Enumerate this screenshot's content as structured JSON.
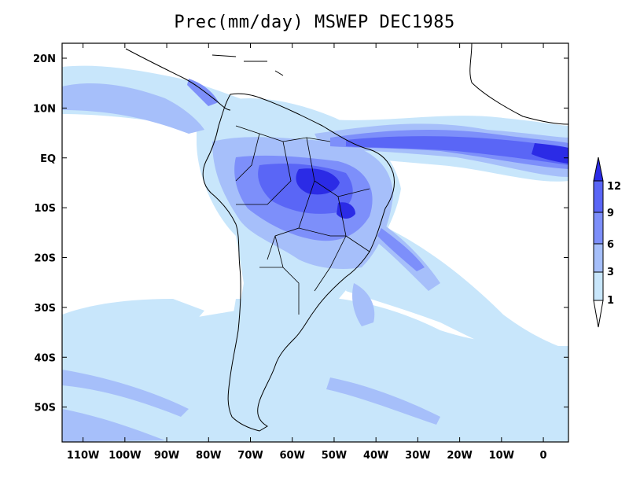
{
  "title": "Prec(mm/day) MSWEP DEC1985",
  "lon_labels": [
    "110W",
    "100W",
    "90W",
    "80W",
    "70W",
    "60W",
    "50W",
    "40W",
    "30W",
    "20W",
    "10W",
    "0"
  ],
  "lat_labels": [
    "20N",
    "10N",
    "EQ",
    "10S",
    "20S",
    "30S",
    "40S",
    "50S"
  ],
  "colorbar": {
    "levels": [
      "1",
      "3",
      "6",
      "9",
      "12"
    ],
    "colors": {
      "c1": "#c8e6fb",
      "c3": "#a6bffa",
      "c6": "#7d8ffa",
      "c9": "#5a66f6",
      "c12": "#2b2be6"
    }
  },
  "map_extent": {
    "lon_min": -115,
    "lon_max": 6,
    "lat_min": -57,
    "lat_max": 23
  }
}
